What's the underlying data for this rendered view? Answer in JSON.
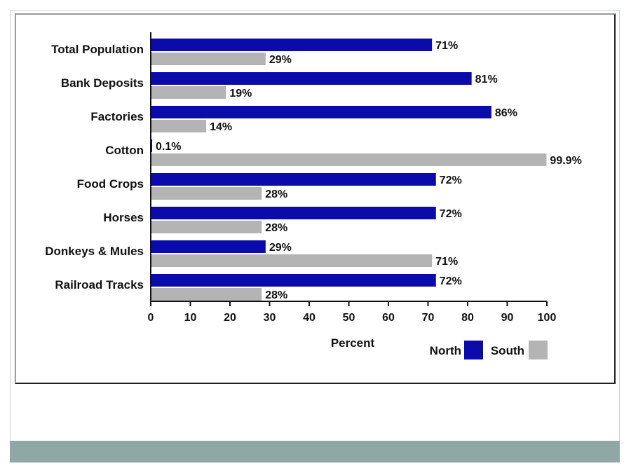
{
  "chart_data": {
    "type": "bar",
    "orientation": "horizontal",
    "title": "",
    "xlabel": "Percent",
    "ylabel": "",
    "xlim": [
      0,
      100
    ],
    "x_ticks": [
      0,
      10,
      20,
      30,
      40,
      50,
      60,
      70,
      80,
      90,
      100
    ],
    "grid": false,
    "legend_position": "bottom-right",
    "categories": [
      "Total Population",
      "Bank Deposits",
      "Factories",
      "Cotton",
      "Food Crops",
      "Horses",
      "Donkeys & Mules",
      "Railroad Tracks"
    ],
    "series": [
      {
        "name": "North",
        "color": "#0b0bab",
        "values": [
          71,
          81,
          86,
          0.1,
          72,
          72,
          29,
          72
        ],
        "labels": [
          "71%",
          "81%",
          "86%",
          "0.1%",
          "72%",
          "72%",
          "29%",
          "72%"
        ]
      },
      {
        "name": "South",
        "color": "#b4b4b4",
        "values": [
          29,
          19,
          14,
          99.9,
          28,
          28,
          71,
          28
        ],
        "labels": [
          "29%",
          "19%",
          "14%",
          "99.9%",
          "28%",
          "28%",
          "71%",
          "28%"
        ]
      }
    ]
  }
}
